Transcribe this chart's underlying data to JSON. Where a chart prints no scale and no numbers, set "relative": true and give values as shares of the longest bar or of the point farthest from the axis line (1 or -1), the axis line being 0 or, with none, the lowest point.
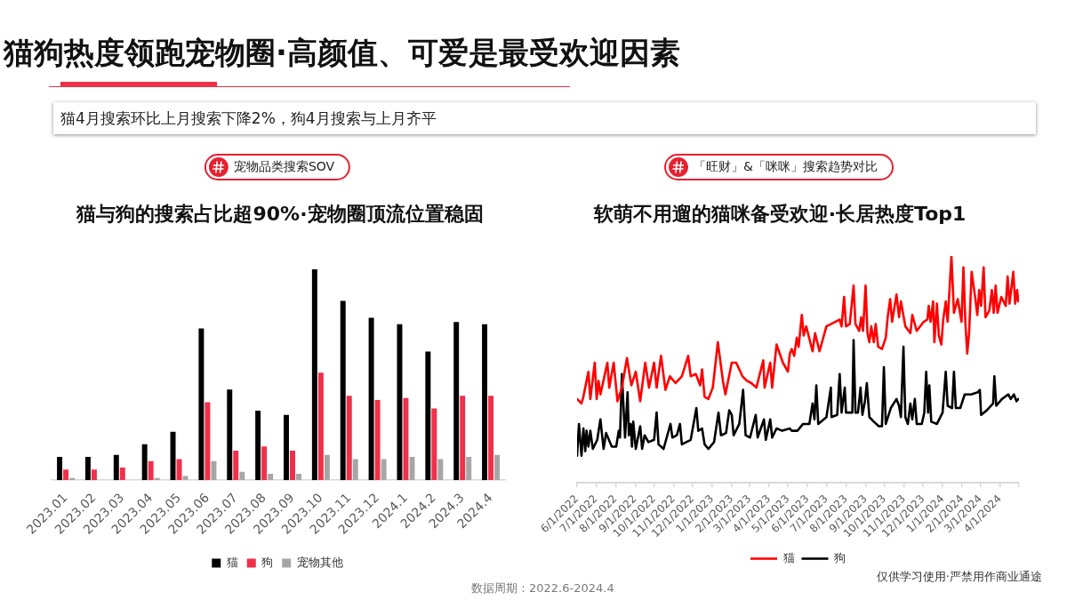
{
  "chart_data": [
    {
      "type": "bar",
      "title": "宠物品类搜索SOV",
      "subtitle": "猫与狗的搜索占比超90%·宠物圈顶流位置稳固",
      "annotations": [
        "猫狗热度领跑宠物圈·高颜值、可爱是最受欢迎因素",
        "猫4月搜索环比上月搜索下降2%，狗4月搜索与上月齐平"
      ],
      "relative": true,
      "legend": "bottom",
      "categories": [
        "2023.01",
        "2023.02",
        "2023.03",
        "2023.04",
        "2023.05",
        "2023.06",
        "2023.07",
        "2023.08",
        "2023.09",
        "2023.10",
        "2023.11",
        "2023.12",
        "2024.1",
        "2024.2",
        "2024.3",
        "2024.4"
      ],
      "series": [
        {
          "name": "猫",
          "color": "#000000",
          "values": [
            0.11,
            0.11,
            0.12,
            0.17,
            0.23,
            0.72,
            0.43,
            0.33,
            0.31,
            1,
            0.85,
            0.77,
            0.74,
            0.61,
            0.75,
            0.74
          ]
        },
        {
          "name": "狗",
          "color": "#f0304a",
          "values": [
            0.05,
            0.05,
            0.06,
            0.09,
            0.1,
            0.37,
            0.14,
            0.16,
            0.14,
            0.51,
            0.4,
            0.38,
            0.39,
            0.34,
            0.4,
            0.4
          ]
        },
        {
          "name": "宠物其他",
          "color": "#a6a6a6",
          "values": [
            0.01,
            0,
            0,
            0.01,
            0.02,
            0.09,
            0.04,
            0.03,
            0.03,
            0.12,
            0.1,
            0.1,
            0.11,
            0.1,
            0.11,
            0.12
          ]
        }
      ]
    },
    {
      "type": "line",
      "title": "「旺财」&「咪咪」搜索趋势对比",
      "subtitle": "软萌不用遛的猫咪备受欢迎·长居热度Top1",
      "annotations": [
        "数据周期：2022.6-2024.4",
        "仅供学习使用·严禁用作商业通途"
      ],
      "relative": true,
      "legend": "bottom",
      "marker": "none",
      "xlim": [
        "2022-06-01",
        "2024-05-01"
      ],
      "xticks": [
        {
          "value": "2022-06-01",
          "label": "6/1/2022"
        },
        {
          "value": "2022-07-01",
          "label": "7/1/2022"
        },
        {
          "value": "2022-08-01",
          "label": "8/1/2022"
        },
        {
          "value": "2022-09-01",
          "label": "9/1/2022"
        },
        {
          "value": "2022-10-01",
          "label": "10/1/2022"
        },
        {
          "value": "2022-11-01",
          "label": "11/1/2022"
        },
        {
          "value": "2022-12-01",
          "label": "12/1/2022"
        },
        {
          "value": "2023-01-01",
          "label": "1/1/2023"
        },
        {
          "value": "2023-02-01",
          "label": "2/1/2023"
        },
        {
          "value": "2023-03-01",
          "label": "3/1/2023"
        },
        {
          "value": "2023-04-01",
          "label": "4/1/2023"
        },
        {
          "value": "2023-05-01",
          "label": "5/1/2023"
        },
        {
          "value": "2023-06-01",
          "label": "6/1/2023"
        },
        {
          "value": "2023-07-01",
          "label": "7/1/2023"
        },
        {
          "value": "2023-08-01",
          "label": "8/1/2023"
        },
        {
          "value": "2023-09-01",
          "label": "9/1/2023"
        },
        {
          "value": "2023-10-01",
          "label": "10/1/2023"
        },
        {
          "value": "2023-11-01",
          "label": "11/1/2023"
        },
        {
          "value": "2023-12-01",
          "label": "12/1/2023"
        },
        {
          "value": "2024-01-01",
          "label": "1/1/2024"
        },
        {
          "value": "2024-02-01",
          "label": "2/1/2024"
        },
        {
          "value": "2024-03-01",
          "label": "3/1/2024"
        },
        {
          "value": "2024-04-01",
          "label": "4/1/2024"
        },
        {
          "value": "2024-05-01",
          "label": null
        }
      ],
      "series": [
        {
          "name": "猫",
          "color": "#ff0000",
          "x": [
            "2022-06-01",
            "2022-06-08",
            "2022-06-11",
            "2022-06-19",
            "2022-06-22",
            "2022-06-29",
            "2022-07-02",
            "2022-07-05",
            "2022-07-08",
            "2022-07-19",
            "2022-07-22",
            "2022-07-29",
            "2022-08-04",
            "2022-08-11",
            "2022-08-19",
            "2022-08-26",
            "2022-09-02",
            "2022-09-09",
            "2022-09-17",
            "2022-09-23",
            "2022-10-01",
            "2022-10-05",
            "2022-10-12",
            "2022-10-19",
            "2022-10-26",
            "2022-11-04",
            "2022-11-14",
            "2022-11-24",
            "2022-11-28",
            "2022-12-06",
            "2022-12-13",
            "2022-12-16",
            "2022-12-20",
            "2022-12-26",
            "2023-01-02",
            "2023-01-10",
            "2023-01-18",
            "2023-01-22",
            "2023-02-01",
            "2023-02-08",
            "2023-02-18",
            "2023-02-25",
            "2023-03-04",
            "2023-03-12",
            "2023-03-23",
            "2023-03-25",
            "2023-04-03",
            "2023-04-06",
            "2023-04-13",
            "2023-04-23",
            "2023-05-01",
            "2023-05-04",
            "2023-05-07",
            "2023-05-11",
            "2023-05-15",
            "2023-05-18",
            "2023-05-23",
            "2023-05-26",
            "2023-05-30",
            "2023-06-09",
            "2023-06-13",
            "2023-06-20",
            "2023-07-01",
            "2023-07-08",
            "2023-07-15",
            "2023-07-22",
            "2023-07-25",
            "2023-07-29",
            "2023-08-01",
            "2023-08-07",
            "2023-08-13",
            "2023-08-16",
            "2023-08-22",
            "2023-08-25",
            "2023-08-28",
            "2023-09-01",
            "2023-09-04",
            "2023-09-07",
            "2023-09-10",
            "2023-09-14",
            "2023-09-17",
            "2023-09-21",
            "2023-09-27",
            "2023-10-03",
            "2023-10-06",
            "2023-10-10",
            "2023-10-13",
            "2023-10-20",
            "2023-10-24",
            "2023-10-27",
            "2023-11-03",
            "2023-11-11",
            "2023-11-14",
            "2023-11-21",
            "2023-12-02",
            "2023-12-08",
            "2023-12-10",
            "2023-12-13",
            "2023-12-17",
            "2023-12-19",
            "2023-12-23",
            "2023-12-26",
            "2023-12-30",
            "2024-01-02",
            "2024-01-06",
            "2024-01-09",
            "2024-01-15",
            "2024-01-19",
            "2024-01-25",
            "2024-01-31",
            "2024-02-03",
            "2024-02-06",
            "2024-02-09",
            "2024-02-12",
            "2024-02-16",
            "2024-02-22",
            "2024-02-25",
            "2024-02-28",
            "2024-03-02",
            "2024-03-06",
            "2024-03-09",
            "2024-03-15",
            "2024-03-19",
            "2024-03-22",
            "2024-03-25",
            "2024-03-28",
            "2024-04-03",
            "2024-04-10",
            "2024-04-13",
            "2024-04-16",
            "2024-04-22",
            "2024-04-25",
            "2024-04-28",
            "2024-04-30"
          ],
          "values": [
            0.37,
            0.35,
            0.38,
            0.49,
            0.37,
            0.53,
            0.37,
            0.45,
            0.39,
            0.53,
            0.42,
            0.53,
            0.36,
            0.42,
            0.55,
            0.43,
            0.49,
            0.36,
            0.53,
            0.42,
            0.53,
            0.42,
            0.56,
            0.41,
            0.47,
            0.44,
            0.47,
            0.56,
            0.47,
            0.48,
            0.43,
            0.5,
            0.38,
            0.37,
            0.42,
            0.62,
            0.45,
            0.39,
            0.53,
            0.53,
            0.47,
            0.45,
            0.44,
            0.42,
            0.54,
            0.42,
            0.53,
            0.42,
            0.61,
            0.53,
            0.49,
            0.57,
            0.59,
            0.56,
            0.64,
            0.6,
            0.74,
            0.65,
            0.69,
            0.58,
            0.66,
            0.58,
            0.69,
            0.7,
            0.71,
            0.72,
            0.69,
            0.82,
            0.69,
            0.7,
            0.87,
            0.7,
            0.67,
            0.73,
            0.67,
            0.87,
            0.66,
            0.62,
            0.69,
            0.62,
            0.7,
            0.6,
            0.59,
            0.64,
            0.73,
            0.81,
            0.71,
            0.83,
            0.73,
            0.8,
            0.69,
            0.66,
            0.74,
            0.67,
            0.71,
            0.72,
            0.78,
            0.71,
            0.8,
            0.62,
            0.79,
            0.65,
            0.61,
            0.72,
            0.8,
            0.71,
            1,
            0.75,
            0.81,
            0.71,
            0.95,
            0.71,
            0.57,
            0.66,
            0.93,
            0.81,
            0.74,
            0.85,
            0.78,
            0.95,
            0.73,
            0.76,
            0.85,
            0.75,
            0.87,
            0.75,
            0.82,
            0.78,
            0.91,
            0.79,
            0.93,
            0.79,
            0.85,
            0.8
          ]
        },
        {
          "name": "狗",
          "color": "#000000",
          "x": [
            "2022-06-01",
            "2022-06-04",
            "2022-06-08",
            "2022-06-11",
            "2022-06-14",
            "2022-06-16",
            "2022-06-19",
            "2022-06-22",
            "2022-06-26",
            "2022-07-03",
            "2022-07-08",
            "2022-07-13",
            "2022-07-17",
            "2022-07-26",
            "2022-08-02",
            "2022-08-06",
            "2022-08-08",
            "2022-08-11",
            "2022-08-14",
            "2022-08-16",
            "2022-08-20",
            "2022-08-22",
            "2022-08-25",
            "2022-08-27",
            "2022-08-29",
            "2022-09-02",
            "2022-09-09",
            "2022-09-12",
            "2022-09-16",
            "2022-09-22",
            "2022-10-01",
            "2022-10-05",
            "2022-10-08",
            "2022-10-16",
            "2022-10-27",
            "2022-10-30",
            "2022-11-06",
            "2022-11-11",
            "2022-11-14",
            "2022-11-28",
            "2022-12-07",
            "2022-12-10",
            "2022-12-16",
            "2022-12-20",
            "2022-12-26",
            "2023-01-04",
            "2023-01-11",
            "2023-01-15",
            "2023-01-23",
            "2023-01-28",
            "2023-02-01",
            "2023-02-04",
            "2023-02-13",
            "2023-02-19",
            "2023-02-23",
            "2023-03-02",
            "2023-03-11",
            "2023-03-14",
            "2023-03-24",
            "2023-03-27",
            "2023-04-03",
            "2023-04-06",
            "2023-04-13",
            "2023-04-22",
            "2023-05-04",
            "2023-05-07",
            "2023-05-16",
            "2023-05-25",
            "2023-06-04",
            "2023-06-09",
            "2023-06-12",
            "2023-06-15",
            "2023-06-18",
            "2023-07-01",
            "2023-07-08",
            "2023-07-09",
            "2023-07-18",
            "2023-07-22",
            "2023-07-25",
            "2023-07-30",
            "2023-08-01",
            "2023-08-11",
            "2023-08-13",
            "2023-08-16",
            "2023-08-20",
            "2023-08-24",
            "2023-08-27",
            "2023-08-31",
            "2023-09-03",
            "2023-09-07",
            "2023-09-14",
            "2023-09-22",
            "2023-09-27",
            "2023-09-30",
            "2023-10-03",
            "2023-10-11",
            "2023-10-20",
            "2023-10-24",
            "2023-10-27",
            "2023-10-31",
            "2023-11-03",
            "2023-11-07",
            "2023-11-11",
            "2023-11-14",
            "2023-11-18",
            "2023-11-21",
            "2023-11-29",
            "2023-12-03",
            "2023-12-06",
            "2023-12-09",
            "2023-12-11",
            "2023-12-14",
            "2023-12-23",
            "2024-01-01",
            "2024-01-06",
            "2024-01-09",
            "2024-01-16",
            "2024-01-19",
            "2024-01-22",
            "2024-01-29",
            "2024-02-05",
            "2024-02-15",
            "2024-02-26",
            "2024-02-29",
            "2024-03-02",
            "2024-03-11",
            "2024-03-21",
            "2024-03-23",
            "2024-03-26",
            "2024-04-04",
            "2024-04-14",
            "2024-04-18",
            "2024-04-23",
            "2024-04-27",
            "2024-04-30"
          ],
          "values": [
            0.12,
            0.26,
            0.12,
            0.24,
            0.14,
            0.23,
            0.16,
            0.23,
            0.15,
            0.19,
            0.28,
            0.15,
            0.22,
            0.16,
            0.16,
            0.23,
            0.2,
            0.48,
            0.31,
            0.2,
            0.4,
            0.21,
            0.26,
            0.16,
            0.27,
            0.15,
            0.25,
            0.15,
            0.21,
            0.18,
            0.19,
            0.31,
            0.17,
            0.15,
            0.26,
            0.2,
            0.21,
            0.26,
            0.17,
            0.19,
            0.33,
            0.23,
            0.24,
            0.17,
            0.15,
            0.18,
            0.31,
            0.21,
            0.22,
            0.32,
            0.3,
            0.21,
            0.26,
            0.41,
            0.21,
            0.2,
            0.3,
            0.2,
            0.28,
            0.19,
            0.28,
            0.2,
            0.24,
            0.23,
            0.24,
            0.23,
            0.23,
            0.26,
            0.26,
            0.35,
            0.28,
            0.43,
            0.26,
            0.29,
            0.42,
            0.29,
            0.3,
            0.48,
            0.31,
            0.42,
            0.31,
            0.31,
            0.63,
            0.31,
            0.31,
            0.42,
            0.3,
            0.36,
            0.44,
            0.29,
            0.27,
            0.25,
            0.25,
            0.51,
            0.26,
            0.33,
            0.37,
            0.34,
            0.29,
            0.6,
            0.29,
            0.26,
            0.35,
            0.28,
            0.37,
            0.26,
            0.26,
            0.31,
            0.49,
            0.31,
            0.43,
            0.27,
            0.26,
            0.31,
            0.49,
            0.34,
            0.33,
            0.49,
            0.33,
            0.33,
            0.39,
            0.39,
            0.4,
            0.41,
            0.3,
            0.32,
            0.35,
            0.47,
            0.34,
            0.37,
            0.39,
            0.37,
            0.39,
            0.36,
            0.37
          ]
        }
      ]
    }
  ]
}
